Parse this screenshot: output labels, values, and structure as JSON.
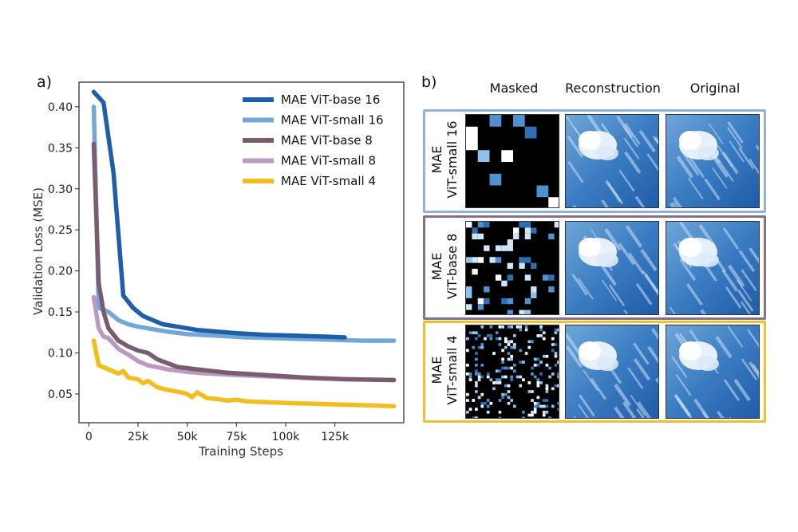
{
  "panel_a_label": "a)",
  "panel_b_label": "b)",
  "chart_data": {
    "type": "line",
    "title": "",
    "xlabel": "Training Steps",
    "ylabel": "Validation Loss (MSE)",
    "xlim": [
      -5000,
      160000
    ],
    "ylim": [
      0.015,
      0.43
    ],
    "xticks": [
      0,
      25000,
      50000,
      75000,
      100000,
      125000
    ],
    "xtick_labels": [
      "0",
      "25k",
      "50k",
      "75k",
      "100k",
      "125k"
    ],
    "yticks": [
      0.05,
      0.1,
      0.15,
      0.2,
      0.25,
      0.3,
      0.35,
      0.4
    ],
    "ytick_labels": [
      "0.05",
      "0.10",
      "0.15",
      "0.20",
      "0.25",
      "0.30",
      "0.35",
      "0.40"
    ],
    "legend_position": "top-right",
    "series": [
      {
        "name": "MAE ViT-base 16",
        "color": "#1f5ea8",
        "x": [
          2500,
          7500,
          12500,
          17500,
          22500,
          27500,
          32500,
          37500,
          45000,
          55000,
          65000,
          75000,
          90000,
          105000,
          120000,
          130000
        ],
        "y": [
          0.418,
          0.405,
          0.32,
          0.17,
          0.155,
          0.145,
          0.14,
          0.135,
          0.132,
          0.128,
          0.126,
          0.124,
          0.122,
          0.121,
          0.12,
          0.119
        ]
      },
      {
        "name": "MAE ViT-small 16",
        "color": "#72a7d8",
        "x": [
          2500,
          5000,
          10000,
          15000,
          20000,
          25000,
          30000,
          40000,
          50000,
          65000,
          80000,
          95000,
          110000,
          125000,
          140000,
          155000
        ],
        "y": [
          0.4,
          0.155,
          0.15,
          0.14,
          0.135,
          0.132,
          0.13,
          0.126,
          0.123,
          0.121,
          0.119,
          0.118,
          0.117,
          0.116,
          0.115,
          0.115
        ]
      },
      {
        "name": "MAE ViT-base 8",
        "color": "#7a5c6e",
        "x": [
          2500,
          5000,
          7500,
          10000,
          15000,
          20000,
          25000,
          30000,
          35000,
          45000,
          55000,
          70000,
          90000,
          110000,
          130000,
          155000
        ],
        "y": [
          0.355,
          0.185,
          0.15,
          0.13,
          0.115,
          0.108,
          0.103,
          0.1,
          0.092,
          0.083,
          0.08,
          0.076,
          0.073,
          0.07,
          0.068,
          0.067
        ]
      },
      {
        "name": "MAE ViT-small 8",
        "color": "#b99ac0",
        "x": [
          2500,
          5000,
          7500,
          10000,
          15000,
          20000,
          25000,
          30000,
          40000,
          50000,
          60000,
          75000,
          95000,
          115000,
          135000,
          155000
        ],
        "y": [
          0.168,
          0.13,
          0.12,
          0.118,
          0.105,
          0.098,
          0.09,
          0.085,
          0.08,
          0.077,
          0.075,
          0.073,
          0.071,
          0.069,
          0.068,
          0.067
        ]
      },
      {
        "name": "MAE ViT-small 4",
        "color": "#f2bd1e",
        "x": [
          2500,
          5000,
          10000,
          15000,
          17500,
          20000,
          25000,
          27500,
          30000,
          35000,
          40000,
          45000,
          50000,
          52500,
          55000,
          60000,
          65000,
          70000,
          75000,
          80000,
          90000,
          100000,
          115000,
          130000,
          145000,
          155000
        ],
        "y": [
          0.115,
          0.085,
          0.08,
          0.075,
          0.078,
          0.07,
          0.068,
          0.063,
          0.066,
          0.058,
          0.055,
          0.053,
          0.05,
          0.046,
          0.052,
          0.045,
          0.044,
          0.042,
          0.043,
          0.041,
          0.04,
          0.039,
          0.038,
          0.037,
          0.036,
          0.035
        ]
      }
    ]
  },
  "panel_b": {
    "column_headers": [
      "Masked",
      "Reconstruction",
      "Original"
    ],
    "rows": [
      {
        "label_line1": "MAE",
        "label_line2": "ViT-small 16",
        "border_color": "#8fb4d9",
        "grid": 8,
        "density": 0.18
      },
      {
        "label_line1": "MAE",
        "label_line2": "ViT-base 8",
        "border_color": "#8a7085",
        "grid": 16,
        "density": 0.2
      },
      {
        "label_line1": "MAE",
        "label_line2": "ViT-small 4",
        "border_color": "#efc02f",
        "grid": 32,
        "density": 0.2
      }
    ]
  }
}
